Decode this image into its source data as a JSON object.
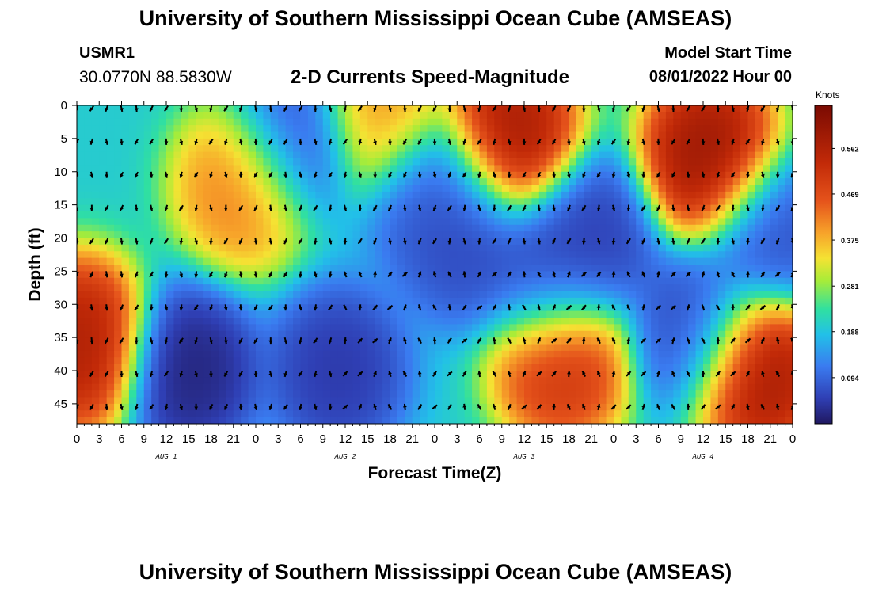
{
  "header": {
    "title": "University of Southern Mississippi Ocean Cube (AMSEAS)",
    "station": "USMR1",
    "coordinates": "30.0770N  88.5830W",
    "subtitle": "2-D Currents Speed-Magnitude",
    "start_label": "Model Start Time",
    "start_value": "08/01/2022 Hour 00"
  },
  "footer": {
    "title": "University of Southern Mississippi Ocean Cube (AMSEAS)"
  },
  "chart_data": {
    "type": "heatmap",
    "xlabel": "Forecast Time(Z)",
    "ylabel": "Depth (ft)",
    "xlim": [
      0,
      96
    ],
    "ylim": [
      48,
      0
    ],
    "x_ticks": [
      0,
      3,
      6,
      9,
      12,
      15,
      18,
      21,
      24,
      27,
      30,
      33,
      36,
      39,
      42,
      45,
      48,
      51,
      54,
      57,
      60,
      63,
      66,
      69,
      72,
      75,
      78,
      81,
      84,
      87,
      90,
      93,
      96
    ],
    "x_tick_labels": [
      "0",
      "3",
      "6",
      "9",
      "12",
      "15",
      "18",
      "21",
      "0",
      "3",
      "6",
      "9",
      "12",
      "15",
      "18",
      "21",
      "0",
      "3",
      "6",
      "9",
      "12",
      "15",
      "18",
      "21",
      "0",
      "3",
      "6",
      "9",
      "12",
      "15",
      "18",
      "21",
      "0"
    ],
    "y_ticks": [
      0,
      5,
      10,
      15,
      20,
      25,
      30,
      35,
      40,
      45
    ],
    "y_tick_labels": [
      "0",
      "5",
      "10",
      "15",
      "20",
      "25",
      "30",
      "35",
      "40",
      "45"
    ],
    "day_labels": [
      {
        "label": "AUG 1",
        "hour": 12
      },
      {
        "label": "AUG 2",
        "hour": 36
      },
      {
        "label": "AUG 3",
        "hour": 60
      },
      {
        "label": "AUG 4",
        "hour": 84
      }
    ],
    "colorbar": {
      "units": "Knots",
      "min": 0,
      "max": 0.65,
      "ticks": [
        0.094,
        0.188,
        0.281,
        0.375,
        0.469,
        0.562
      ],
      "tick_labels": [
        "0.094",
        "0.188",
        "0.281",
        "0.375",
        "0.469",
        "0.562"
      ]
    },
    "speed_features_knots": [
      {
        "t": 0.5,
        "d": 36,
        "speed": 0.6
      },
      {
        "t": 15,
        "d": 40,
        "speed": 0.0
      },
      {
        "t": 22.5,
        "d": 12,
        "speed": 0.45
      },
      {
        "t": 29,
        "d": 5,
        "speed": 0.05
      },
      {
        "t": 35,
        "d": 40,
        "speed": 0.03
      },
      {
        "t": 41,
        "d": 1,
        "speed": 0.42
      },
      {
        "t": 48,
        "d": 13,
        "speed": 0.07
      },
      {
        "t": 52,
        "d": 20,
        "speed": 0.05
      },
      {
        "t": 58,
        "d": 5,
        "speed": 0.62
      },
      {
        "t": 63,
        "d": 26,
        "speed": 0.05
      },
      {
        "t": 69,
        "d": 20,
        "speed": 0.04
      },
      {
        "t": 65,
        "d": 38,
        "speed": 0.55
      },
      {
        "t": 85,
        "d": 8,
        "speed": 0.64
      },
      {
        "t": 83,
        "d": 34,
        "speed": 0.05
      },
      {
        "t": 91,
        "d": 40,
        "speed": 0.63
      },
      {
        "t": 93,
        "d": 19,
        "speed": 0.06
      }
    ],
    "arrow_grid": {
      "hours_step": 2,
      "depths": [
        0,
        5,
        10,
        15,
        20,
        25,
        30,
        35,
        40,
        45
      ],
      "direction_field": "southward-dominant in upper layers, northward-dominant near bottom after hour 36"
    }
  }
}
